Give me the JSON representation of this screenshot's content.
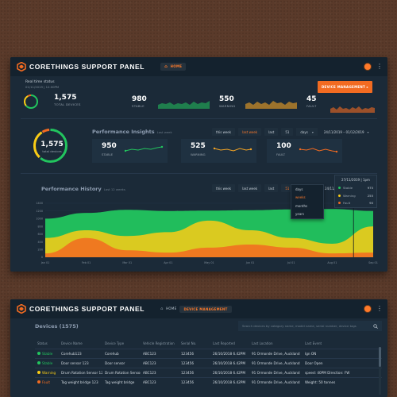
{
  "app": {
    "title": "CORETHINGS SUPPORT PANEL",
    "accent": "#f26b21"
  },
  "dashboard": {
    "breadcrumb": {
      "home": "HOME"
    },
    "realtime_label": "Real time status",
    "realtime_date": "01/11/2019 | 12:00PM",
    "total": {
      "value": "1,575",
      "label": "TOTAL DEVICES"
    },
    "stats": [
      {
        "value": "980",
        "label": "STABLE",
        "color": "#22c55e"
      },
      {
        "value": "550",
        "label": "WARNING",
        "color": "#facc15"
      },
      {
        "value": "45",
        "label": "FAULT",
        "color": "#f26b21"
      }
    ],
    "device_mgmt_button": "DEVICE MANAGEMENT ▸",
    "insights": {
      "title": "Performance Insights",
      "subtitle": "Last week",
      "ring": {
        "value": "1,575",
        "label": "total devices"
      },
      "cards": [
        {
          "value": "950",
          "label": "STABLE"
        },
        {
          "value": "525",
          "label": "WARNING"
        },
        {
          "value": "100",
          "label": "FAULT"
        }
      ],
      "filters": {
        "this_week": "this week",
        "last_week": "last week",
        "last": "last",
        "count": "51",
        "unit": "days",
        "range": "24/11/2019 – 01/12/2019"
      }
    },
    "history": {
      "title": "Performance History",
      "subtitle": "Last 12 weeks",
      "filters": {
        "this_week": "this week",
        "last_week": "last week",
        "last": "last",
        "count": "51",
        "range": "24/11/2019 – 01/12/2019"
      },
      "dropdown": [
        "days",
        "weeks",
        "months",
        "years"
      ],
      "tooltip": {
        "date": "27/11/2019 | 1pm",
        "rows": [
          {
            "label": "Stable",
            "value": "975",
            "color": "#22c55e"
          },
          {
            "label": "Warning",
            "value": "255",
            "color": "#facc15"
          },
          {
            "label": "Fault",
            "value": "90",
            "color": "#f26b21"
          }
        ]
      }
    }
  },
  "chart_data": {
    "type": "area",
    "title": "Performance History",
    "x": [
      "Jan 01",
      "Feb 01",
      "Mar 01",
      "Apr 01",
      "May 01",
      "Jun 01",
      "Jul 01",
      "Aug 01",
      "Sep 01"
    ],
    "ylim": [
      0,
      1400
    ],
    "y_ticks": [
      "1400",
      "1200",
      "1000",
      "800",
      "600",
      "400",
      "200",
      "0"
    ],
    "series": [
      {
        "name": "Stable",
        "color": "#22c55e",
        "values": [
          1000,
          1150,
          1230,
          1200,
          1210,
          1220,
          1240,
          1250,
          1200
        ]
      },
      {
        "name": "Warning",
        "color": "#facc15",
        "values": [
          500,
          700,
          550,
          650,
          950,
          700,
          500,
          350,
          800
        ]
      },
      {
        "name": "Fault",
        "color": "#f26b21",
        "values": [
          100,
          500,
          180,
          120,
          250,
          330,
          250,
          100,
          120
        ]
      }
    ]
  },
  "devices": {
    "breadcrumb": {
      "home": "HOME",
      "current": "DEVICE MANAGEMENT"
    },
    "title": "Devices (1575)",
    "search_placeholder": "Search devices by category name, model name, serial number, device tags",
    "columns": [
      "Status",
      "Device Name",
      "Device Type",
      "Vehicle Registration",
      "Serial No.",
      "Last Reported",
      "Last Location",
      "Last Event"
    ],
    "rows": [
      {
        "status": "Stable",
        "status_color": "#22c55e",
        "name": "Corehub123",
        "type": "Corehub",
        "reg": "ABC123",
        "serial": "123456",
        "reported": "26/10/2018 6.42PM",
        "location": "91 Ormonde Drive, Auckland",
        "event": "Ign ON"
      },
      {
        "status": "Stable",
        "status_color": "#22c55e",
        "name": "Door sensor 123",
        "type": "Door sensor",
        "reg": "ABC123",
        "serial": "123456",
        "reported": "26/10/2018 6.42PM",
        "location": "91 Ormonde Drive, Auckland",
        "event": "Door Open"
      },
      {
        "status": "Warning",
        "status_color": "#facc15",
        "name": "Drum Rotation Sensor 123",
        "type": "Drum Rotation Sensor",
        "reg": "ABC123",
        "serial": "123456",
        "reported": "26/10/2018 6.42PM",
        "location": "91 Ormonde Drive, Auckland",
        "event": "speed: 40PM Direction: FW"
      },
      {
        "status": "Fault",
        "status_color": "#f26b21",
        "name": "Tag weight bridge 123",
        "type": "Tag weight bridge",
        "reg": "ABC123",
        "serial": "123456",
        "reported": "26/10/2018 6.42PM",
        "location": "91 Ormonde Drive, Auckland",
        "event": "Weight: 50 tonnes"
      }
    ]
  }
}
